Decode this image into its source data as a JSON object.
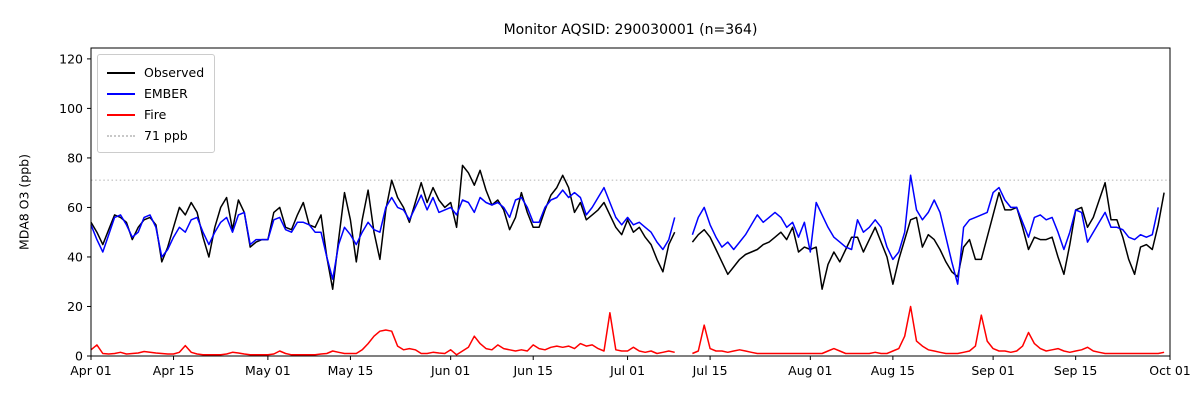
{
  "chart_data": {
    "type": "line",
    "title": "Monitor AQSID: 290030001 (n=364)",
    "xlabel": "",
    "ylabel": "MDA8 O3 (ppb)",
    "ylim": [
      0,
      124.4
    ],
    "y_ticks": [
      0,
      20,
      40,
      60,
      80,
      100,
      120
    ],
    "x_tick_labels": [
      "Apr 01",
      "Apr 15",
      "May 01",
      "May 15",
      "Jun 01",
      "Jun 15",
      "Jul 01",
      "Jul 15",
      "Aug 01",
      "Aug 15",
      "Sep 01",
      "Sep 15",
      "Oct 01"
    ],
    "x_tick_positions": [
      0,
      14,
      30,
      44,
      61,
      75,
      91,
      105,
      122,
      136,
      153,
      167,
      183
    ],
    "x_unit": "days since Apr 01 (daily values; null = missing day)",
    "n_points": 184,
    "grid": false,
    "legend_position": "upper left",
    "threshold": {
      "value": 71,
      "label": "71 ppb",
      "color": "#c8c8c8",
      "style": "dotted"
    },
    "series": [
      {
        "name": "Observed",
        "color": "#000000",
        "values": [
          54,
          50,
          45,
          51,
          57,
          56,
          54,
          47,
          52,
          55,
          56,
          53,
          38,
          44,
          52,
          60,
          57,
          62,
          58,
          48,
          40,
          52,
          60,
          64,
          51,
          63,
          58,
          44,
          46,
          47,
          47,
          58,
          60,
          52,
          51,
          57,
          62,
          53,
          52,
          57,
          40,
          27,
          47,
          66,
          55,
          38,
          55,
          67,
          50,
          39,
          59,
          71,
          64,
          60,
          54,
          62,
          70,
          62,
          68,
          63,
          60,
          62,
          52,
          77,
          74,
          69,
          75,
          67,
          61,
          63,
          59,
          51,
          56,
          66,
          58,
          52,
          52,
          59,
          65,
          68,
          73,
          68,
          58,
          62,
          55,
          57,
          59,
          62,
          57,
          52,
          49,
          55,
          50,
          52,
          48,
          45,
          39,
          34,
          45,
          50,
          null,
          null,
          46,
          49,
          51,
          48,
          43,
          38,
          33,
          36,
          39,
          41,
          42,
          43,
          45,
          46,
          48,
          50,
          47,
          52,
          42,
          44,
          43,
          44,
          27,
          37,
          42,
          38,
          43,
          48,
          48,
          42,
          47,
          52,
          46,
          40,
          29,
          39,
          47,
          55,
          56,
          44,
          49,
          47,
          43,
          38,
          34,
          32,
          44,
          47,
          39,
          39,
          48,
          57,
          66,
          59,
          59,
          60,
          52,
          43,
          48,
          47,
          47,
          48,
          40,
          33,
          45,
          59,
          60,
          52,
          56,
          63,
          70,
          55,
          55,
          48,
          39,
          33,
          44,
          45,
          43,
          53,
          66,
          null
        ]
      },
      {
        "name": "EMBER",
        "color": "#0000ff",
        "values": [
          53,
          47,
          42,
          49,
          56,
          57,
          53,
          48,
          50,
          56,
          57,
          52,
          40,
          43,
          48,
          52,
          50,
          55,
          56,
          50,
          45,
          50,
          54,
          56,
          50,
          57,
          58,
          45,
          47,
          47,
          47,
          55,
          56,
          51,
          50,
          54,
          54,
          53,
          50,
          50,
          40,
          31,
          45,
          52,
          49,
          45,
          50,
          54,
          51,
          50,
          60,
          64,
          60,
          59,
          55,
          60,
          65,
          59,
          64,
          58,
          59,
          60,
          57,
          63,
          62,
          58,
          64,
          62,
          61,
          62,
          60,
          56,
          63,
          64,
          60,
          54,
          54,
          60,
          63,
          64,
          67,
          64,
          66,
          64,
          57,
          60,
          64,
          68,
          62,
          56,
          53,
          56,
          53,
          54,
          52,
          50,
          46,
          43,
          47,
          56,
          null,
          null,
          49,
          56,
          60,
          53,
          48,
          44,
          46,
          43,
          46,
          49,
          53,
          57,
          54,
          56,
          58,
          56,
          52,
          54,
          48,
          54,
          42,
          62,
          57,
          52,
          48,
          46,
          44,
          43,
          55,
          50,
          52,
          55,
          52,
          44,
          39,
          42,
          50,
          73,
          59,
          55,
          58,
          63,
          58,
          48,
          38,
          29,
          52,
          55,
          56,
          57,
          58,
          66,
          68,
          63,
          60,
          60,
          54,
          48,
          56,
          57,
          55,
          56,
          50,
          43,
          50,
          59,
          58,
          46,
          50,
          54,
          58,
          52,
          52,
          51,
          48,
          47,
          49,
          48,
          49,
          60,
          null,
          null
        ]
      },
      {
        "name": "Fire",
        "color": "#ff0000",
        "values": [
          2.5,
          4.5,
          1,
          0.8,
          1,
          1.5,
          0.8,
          1,
          1.2,
          1.8,
          1.5,
          1.2,
          1,
          0.8,
          0.8,
          1.5,
          4.2,
          1.5,
          0.8,
          0.5,
          0.5,
          0.5,
          0.5,
          0.8,
          1.5,
          1.2,
          0.8,
          0.5,
          0.5,
          0.5,
          0.5,
          0.8,
          2,
          1,
          0.5,
          0.5,
          0.5,
          0.5,
          0.5,
          0.8,
          1,
          2,
          1.5,
          1,
          1,
          1,
          2.5,
          5,
          8,
          10,
          10.5,
          10,
          4,
          2.5,
          3,
          2.5,
          1,
          1,
          1.5,
          1.2,
          1,
          2.5,
          0.5,
          2,
          3.5,
          8,
          5,
          3,
          2.5,
          4.5,
          3,
          2.5,
          2,
          2.5,
          2,
          4.5,
          3,
          2.5,
          3.5,
          4,
          3.5,
          4,
          3,
          5,
          4,
          4.5,
          3,
          2,
          17.5,
          2.5,
          2,
          2,
          3.5,
          2,
          1.5,
          2,
          1,
          1.5,
          2,
          1.5,
          null,
          null,
          1,
          2,
          12.5,
          3,
          2,
          2,
          1.5,
          2,
          2.5,
          2,
          1.5,
          1,
          1,
          1,
          1,
          1,
          1,
          1,
          1,
          1,
          1,
          1,
          1,
          2,
          3,
          2,
          1,
          1,
          1,
          1,
          1,
          1.5,
          1,
          1,
          2,
          3,
          8,
          20,
          6,
          4,
          2.5,
          2,
          1.5,
          1,
          1,
          1,
          1.5,
          2,
          4,
          16.5,
          6,
          3,
          2,
          2,
          1.5,
          2,
          4,
          9.5,
          5,
          3,
          2,
          2.5,
          3,
          2,
          1.5,
          2,
          2.5,
          3.5,
          2,
          1.5,
          1,
          1,
          1,
          1,
          1,
          1,
          1,
          1,
          1,
          1,
          1.5,
          null
        ]
      }
    ]
  }
}
